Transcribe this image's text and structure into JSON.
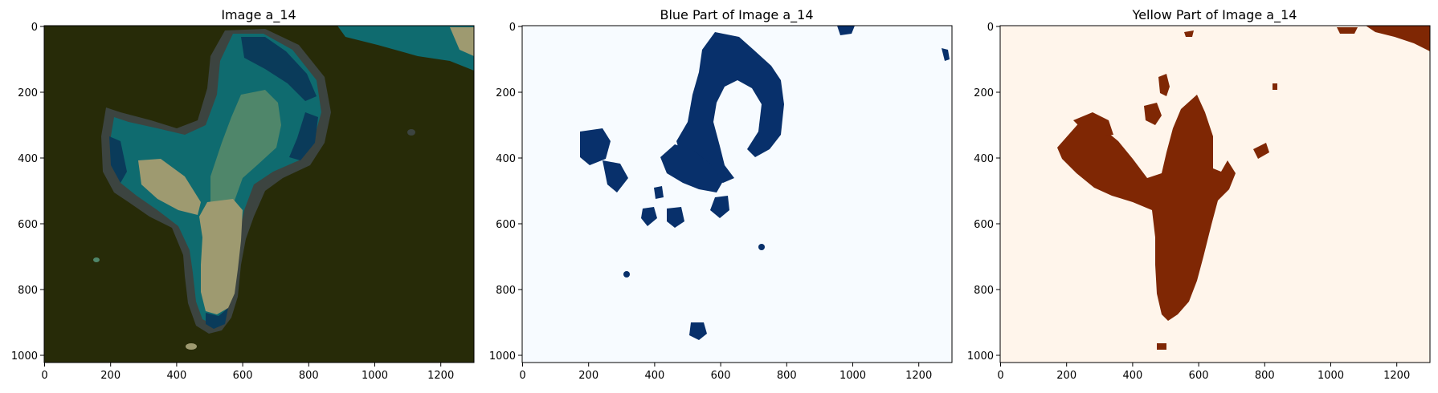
{
  "panels": [
    {
      "title": "Image a_14",
      "xticks": [
        "0",
        "200",
        "400",
        "600",
        "800",
        "1000",
        "1200"
      ],
      "yticks": [
        "0",
        "200",
        "400",
        "600",
        "800",
        "1000"
      ]
    },
    {
      "title": "Blue Part of Image a_14",
      "xticks": [
        "0",
        "200",
        "400",
        "600",
        "800",
        "1000",
        "1200"
      ],
      "yticks": [
        "0",
        "200",
        "400",
        "600",
        "800",
        "1000"
      ]
    },
    {
      "title": "Yellow Part of Image a_14",
      "xticks": [
        "0",
        "200",
        "400",
        "600",
        "800",
        "1000",
        "1200"
      ],
      "yticks": [
        "0",
        "200",
        "400",
        "600",
        "800",
        "1000"
      ]
    }
  ],
  "colors": {
    "original_background": "#272b08",
    "original_halo": "#3c4440",
    "original_teal": "#0f6b6f",
    "original_navy": "#0a3b5a",
    "original_sage": "#4f866a",
    "original_tan": "#9e9a70",
    "blue_mask_fill": "#08306b",
    "blue_mask_background": "#f7fbff",
    "yellow_mask_fill": "#7f2704",
    "yellow_mask_background": "#fff5eb"
  }
}
